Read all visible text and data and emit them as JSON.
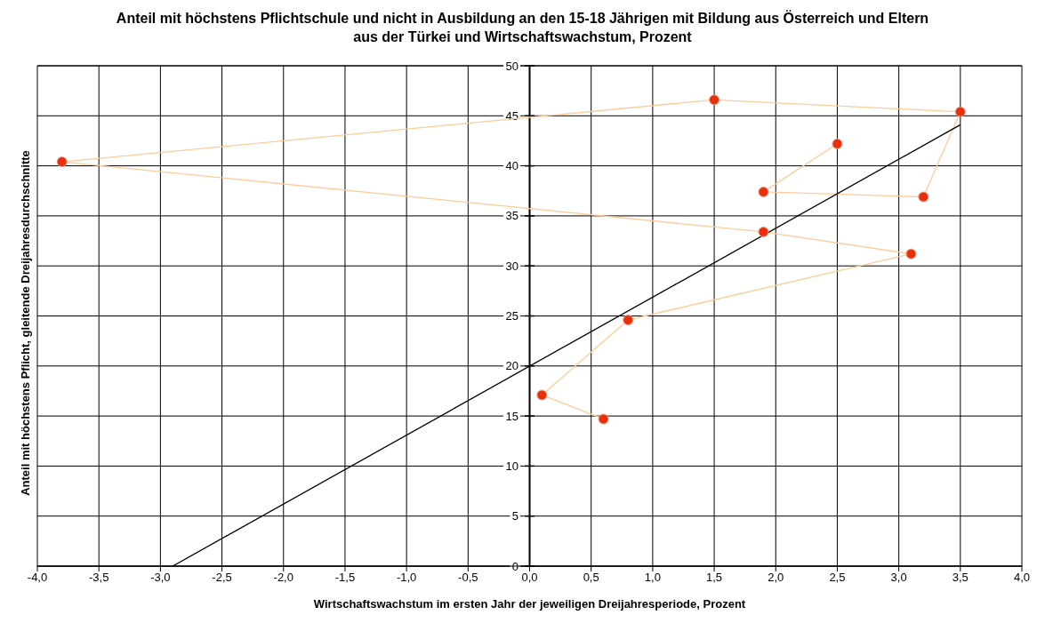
{
  "chart_data": {
    "type": "scatter",
    "title": "Anteil mit höchstens Pflichtschule und nicht in Ausbildung an den 15-18 Jährigen mit Bildung aus Österreich und Eltern aus der Türkei und Wirtschaftswachstum, Prozent",
    "xlabel": "Wirtschaftswachstum im ersten Jahr der jeweiligen Dreijahresperiode, Prozent",
    "ylabel": "Anteil mit höchstens Pflicht, gleitende Dreijahresdurchschnitte",
    "xlim": [
      -4,
      4
    ],
    "xticks": [
      {
        "value": -4,
        "label": "-4,0"
      },
      {
        "value": -3.5,
        "label": "-3,5"
      },
      {
        "value": -3,
        "label": "-3,0"
      },
      {
        "value": -2.5,
        "label": "-2,5"
      },
      {
        "value": -2,
        "label": "-2,0"
      },
      {
        "value": -1.5,
        "label": "-1,5"
      },
      {
        "value": -1,
        "label": "-1,0"
      },
      {
        "value": -0.5,
        "label": "-0,5"
      },
      {
        "value": 0,
        "label": "0,0"
      },
      {
        "value": 0.5,
        "label": "0,5"
      },
      {
        "value": 1,
        "label": "1,0"
      },
      {
        "value": 1.5,
        "label": "1,5"
      },
      {
        "value": 2,
        "label": "2,0"
      },
      {
        "value": 2.5,
        "label": "2,5"
      },
      {
        "value": 3,
        "label": "3,0"
      },
      {
        "value": 3.5,
        "label": "3,5"
      },
      {
        "value": 4,
        "label": "4,0"
      }
    ],
    "ylim": [
      0,
      50
    ],
    "yticks": [
      0,
      5,
      10,
      15,
      20,
      25,
      30,
      35,
      40,
      45,
      50
    ],
    "grid": true,
    "marker": "circle",
    "series": [
      {
        "type": "line",
        "color": "#ffcc99",
        "colors": [
          "#e8310c",
          "#e8310c",
          "#e8310c",
          "#e8310c",
          "#e8310c",
          "#e8310c",
          "#e8310c",
          "#e8310c",
          "#e8310c",
          "#e8310c",
          "#e8310c"
        ],
        "x": [
          0.6,
          0.1,
          0.8,
          3.1,
          1.9,
          -3.8,
          1.5,
          3.5,
          3.2,
          1.9,
          2.5
        ],
        "values": [
          14.7,
          17.1,
          24.6,
          31.2,
          33.4,
          40.4,
          46.6,
          45.4,
          36.9,
          37.4,
          42.2
        ]
      },
      {
        "type": "line",
        "marker": "none",
        "color": "#000000",
        "x": [
          -2.9,
          3.5
        ],
        "values": [
          0,
          44.1
        ]
      }
    ]
  }
}
